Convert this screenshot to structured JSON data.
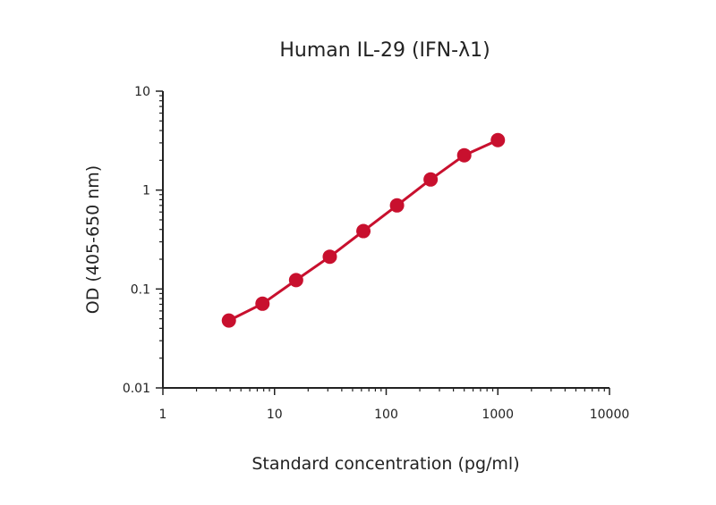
{
  "chart_data": {
    "type": "line",
    "title": "Human IL-29 (IFN-λ1)",
    "xlabel": "Standard concentration (pg/ml)",
    "ylabel": "OD (405-650 nm)",
    "x_scale": "log",
    "y_scale": "log",
    "xlim": [
      1,
      10000
    ],
    "ylim": [
      0.01,
      10
    ],
    "x_ticks": [
      1,
      10,
      100,
      1000,
      10000
    ],
    "x_tick_labels": [
      "1",
      "10",
      "100",
      "1000",
      "10000"
    ],
    "y_ticks": [
      0.01,
      0.1,
      1,
      10
    ],
    "y_tick_labels": [
      "0.01",
      "0.1",
      "1",
      "10"
    ],
    "grid": false,
    "series": [
      {
        "color": "#c8102e",
        "x": [
          3.9,
          7.8,
          15.6,
          31.25,
          62.5,
          125,
          250,
          500,
          1000
        ],
        "y": [
          0.048,
          0.071,
          0.123,
          0.212,
          0.385,
          0.7,
          1.28,
          2.25,
          3.2
        ]
      }
    ]
  }
}
